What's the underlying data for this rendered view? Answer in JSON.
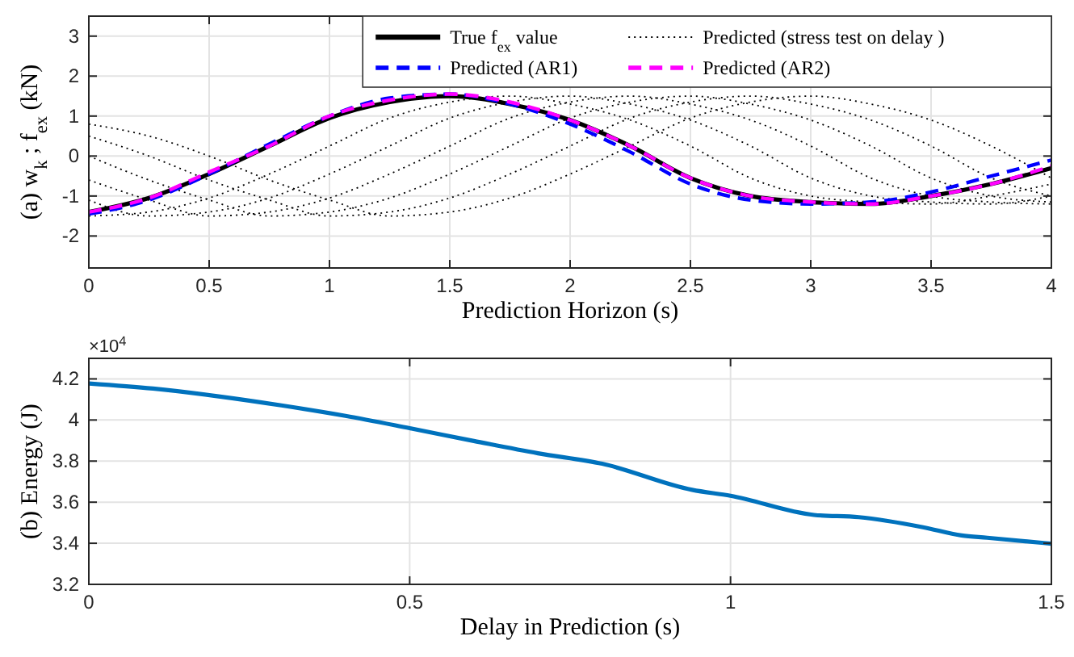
{
  "chart_data": [
    {
      "type": "line",
      "xlabel": "Prediction Horizon (s)",
      "ylabel": "(a) w$_{k}$ ; f$_{ex}$ (kN)",
      "x": [
        0,
        0.25,
        0.5,
        0.75,
        1,
        1.25,
        1.5,
        1.75,
        2,
        2.25,
        2.5,
        2.75,
        3,
        3.25,
        3.5,
        3.75,
        4
      ],
      "series": [
        {
          "name": "True f$_{ex}$ value",
          "color": "#000000",
          "line_style": "solid",
          "values": [
            -1.4,
            -1.05,
            -0.45,
            0.25,
            0.95,
            1.35,
            1.5,
            1.3,
            0.9,
            0.25,
            -0.55,
            -1.0,
            -1.15,
            -1.2,
            -1.0,
            -0.7,
            -0.3
          ]
        },
        {
          "name": "Predicted (AR1)",
          "color": "#0000ff",
          "line_style": "dashed",
          "values": [
            -1.45,
            -1.1,
            -0.45,
            0.3,
            1.0,
            1.45,
            1.55,
            1.3,
            0.8,
            0.1,
            -0.7,
            -1.1,
            -1.2,
            -1.15,
            -0.9,
            -0.5,
            -0.1
          ]
        },
        {
          "name": "Predicted (stress test on delay )",
          "color": "#000000",
          "line_style": "dotted",
          "values": [
            -1.5,
            -1.4,
            -1.05,
            -0.45,
            0.25,
            0.95,
            1.35,
            1.5,
            1.3,
            0.9,
            0.25,
            -0.55,
            -1.0,
            -1.15,
            -1.2,
            -1.0,
            -0.7
          ]
        },
        {
          "color": "#000000",
          "line_style": "dotted",
          "values": [
            -1.1,
            -1.5,
            -1.4,
            -1.05,
            -0.45,
            0.25,
            0.95,
            1.35,
            1.5,
            1.3,
            0.9,
            0.25,
            -0.55,
            -1.0,
            -1.15,
            -1.2,
            -1.0
          ]
        },
        {
          "color": "#000000",
          "line_style": "dotted",
          "values": [
            -0.6,
            -1.1,
            -1.5,
            -1.4,
            -1.05,
            -0.45,
            0.25,
            0.95,
            1.35,
            1.5,
            1.3,
            0.9,
            0.25,
            -0.55,
            -1.0,
            -1.15,
            -1.2
          ]
        },
        {
          "color": "#000000",
          "line_style": "dotted",
          "values": [
            0.0,
            -0.6,
            -1.1,
            -1.5,
            -1.4,
            -1.05,
            -0.45,
            0.25,
            0.95,
            1.35,
            1.5,
            1.3,
            0.9,
            0.25,
            -0.55,
            -1.0,
            -1.15
          ]
        },
        {
          "color": "#000000",
          "line_style": "dotted",
          "values": [
            0.5,
            0.0,
            -0.6,
            -1.1,
            -1.5,
            -1.4,
            -1.05,
            -0.45,
            0.25,
            0.95,
            1.35,
            1.5,
            1.3,
            0.9,
            0.25,
            -0.55,
            -1.0
          ]
        },
        {
          "color": "#000000",
          "line_style": "dotted",
          "values": [
            0.8,
            0.5,
            0.0,
            -0.6,
            -1.1,
            -1.5,
            -1.4,
            -1.05,
            -0.45,
            0.25,
            0.95,
            1.35,
            1.5,
            1.3,
            0.9,
            0.25,
            -0.55
          ]
        },
        {
          "name": "Predicted (AR2)",
          "color": "#ff00ff",
          "line_style": "dashed",
          "values": [
            -1.4,
            -1.05,
            -0.4,
            0.25,
            1.0,
            1.4,
            1.55,
            1.35,
            0.9,
            0.25,
            -0.55,
            -1.0,
            -1.15,
            -1.2,
            -1.0,
            -0.7,
            -0.25
          ]
        }
      ],
      "xlim": [
        0,
        4
      ],
      "xticks": [
        0,
        0.5,
        1,
        1.5,
        2,
        2.5,
        3,
        3.5,
        4
      ],
      "ylim": [
        -2.8,
        3.5
      ],
      "yticks": [
        -2,
        -1,
        0,
        1,
        2,
        3
      ],
      "grid": true,
      "legend": "top right"
    },
    {
      "type": "line",
      "xlabel": "Delay in Prediction (s)",
      "ylabel": "(b) Energy (J)",
      "annotations": [
        "×10$^{4}$"
      ],
      "x": [
        0,
        0.1,
        0.2,
        0.3,
        0.4,
        0.5,
        0.6,
        0.7,
        0.8,
        0.94,
        1.0,
        1.13,
        1.2,
        1.3,
        1.36,
        1.4,
        1.5
      ],
      "series": [
        {
          "color": "#0072bd",
          "line_style": "solid",
          "values": [
            4.178,
            4.153,
            4.116,
            4.071,
            4.02,
            3.96,
            3.898,
            3.838,
            3.787,
            3.66,
            3.631,
            3.538,
            3.527,
            3.478,
            3.438,
            3.427,
            3.398
          ]
        }
      ],
      "xlim": [
        0,
        1.5
      ],
      "xticks": [
        0,
        0.5,
        1,
        1.5
      ],
      "ylim": [
        3.2,
        4.3
      ],
      "yticks": [
        3.2,
        3.4,
        3.6,
        3.8,
        4,
        4.2
      ],
      "grid": true
    }
  ]
}
